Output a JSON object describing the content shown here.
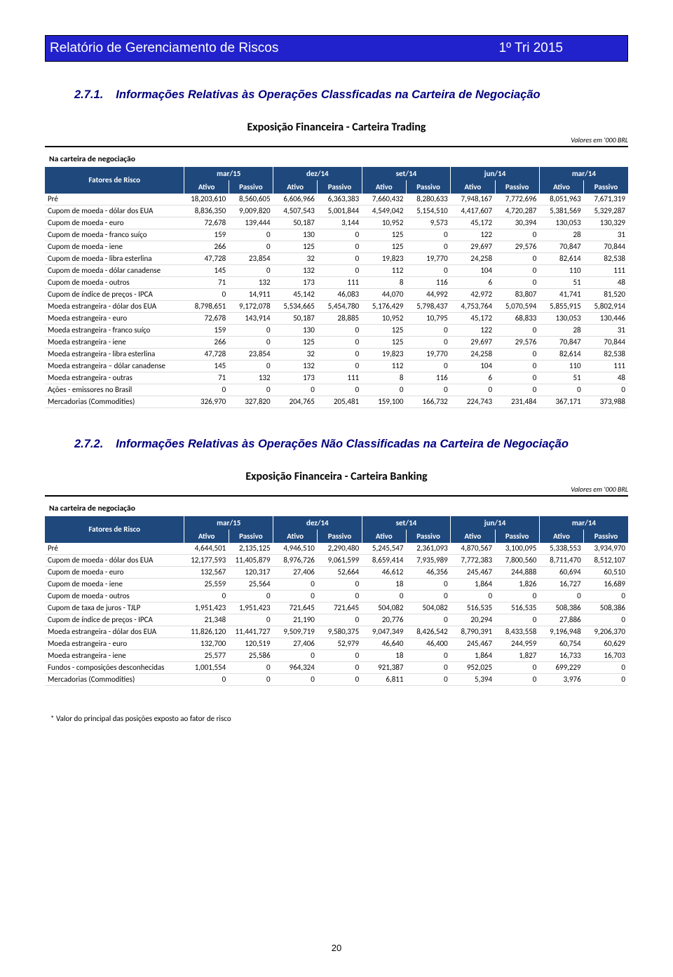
{
  "header": {
    "title": "Relatório de Gerenciamento de Riscos",
    "period": "1º Tri 2015",
    "bg_color": "#2222cc"
  },
  "section1": {
    "num": "2.7.1.",
    "text": "Informações Relativas às Operações Classficadas na Carteira de Negociação"
  },
  "section2": {
    "num": "2.7.2.",
    "text": "Informações Relativas às Operações Não Classificadas na Carteira de Negociação"
  },
  "table1": {
    "title": "Exposição Financeira - Carteira Trading",
    "note": "Valores em '000 BRL",
    "pre": "Na carteira de negociação",
    "fatores_label": "Fatores de Risco",
    "periods": [
      "mar/15",
      "dez/14",
      "set/14",
      "jun/14",
      "mar/14"
    ],
    "subheads": [
      "Ativo",
      "Passivo"
    ],
    "rows": [
      {
        "label": "Pré",
        "v": [
          "18,203,610",
          "8,560,605",
          "6,606,966",
          "6,363,383",
          "7,660,432",
          "8,280,633",
          "7,948,167",
          "7,772,696",
          "8,051,963",
          "7,671,319"
        ]
      },
      {
        "label": "Cupom de moeda - dólar dos EUA",
        "v": [
          "8,836,350",
          "9,009,820",
          "4,507,543",
          "5,001,844",
          "4,549,042",
          "5,154,510",
          "4,417,607",
          "4,720,287",
          "5,381,569",
          "5,329,287"
        ]
      },
      {
        "label": "Cupom de moeda - euro",
        "v": [
          "72,678",
          "139,444",
          "50,187",
          "3,144",
          "10,952",
          "9,573",
          "45,172",
          "30,394",
          "130,053",
          "130,329"
        ]
      },
      {
        "label": "Cupom de moeda - franco suíço",
        "v": [
          "159",
          "0",
          "130",
          "0",
          "125",
          "0",
          "122",
          "0",
          "28",
          "31"
        ]
      },
      {
        "label": "Cupom de moeda - iene",
        "v": [
          "266",
          "0",
          "125",
          "0",
          "125",
          "0",
          "29,697",
          "29,576",
          "70,847",
          "70,844"
        ]
      },
      {
        "label": "Cupom de moeda - libra esterlina",
        "v": [
          "47,728",
          "23,854",
          "32",
          "0",
          "19,823",
          "19,770",
          "24,258",
          "0",
          "82,614",
          "82,538"
        ]
      },
      {
        "label": "Cupom de moeda - dólar canadense",
        "v": [
          "145",
          "0",
          "132",
          "0",
          "112",
          "0",
          "104",
          "0",
          "110",
          "111"
        ]
      },
      {
        "label": "Cupom de moeda - outros",
        "v": [
          "71",
          "132",
          "173",
          "111",
          "8",
          "116",
          "6",
          "0",
          "51",
          "48"
        ]
      },
      {
        "label": "Cupom de índice de preços - IPCA",
        "v": [
          "0",
          "14,911",
          "45,142",
          "46,083",
          "44,070",
          "44,992",
          "42,972",
          "83,807",
          "41,741",
          "81,520"
        ]
      },
      {
        "label": "Moeda estrangeira - dólar dos EUA",
        "v": [
          "8,798,651",
          "9,172,078",
          "5,534,665",
          "5,454,780",
          "5,176,429",
          "5,798,437",
          "4,753,764",
          "5,070,594",
          "5,855,915",
          "5,802,914"
        ]
      },
      {
        "label": "Moeda estrangeira - euro",
        "v": [
          "72,678",
          "143,914",
          "50,187",
          "28,885",
          "10,952",
          "10,795",
          "45,172",
          "68,833",
          "130,053",
          "130,446"
        ]
      },
      {
        "label": "Moeda estrangeira - franco suíço",
        "v": [
          "159",
          "0",
          "130",
          "0",
          "125",
          "0",
          "122",
          "0",
          "28",
          "31"
        ]
      },
      {
        "label": "Moeda estrangeira - iene",
        "v": [
          "266",
          "0",
          "125",
          "0",
          "125",
          "0",
          "29,697",
          "29,576",
          "70,847",
          "70,844"
        ]
      },
      {
        "label": "Moeda estrangeira - libra esterlina",
        "v": [
          "47,728",
          "23,854",
          "32",
          "0",
          "19,823",
          "19,770",
          "24,258",
          "0",
          "82,614",
          "82,538"
        ]
      },
      {
        "label": "Moeda estrangeira – dólar canadense",
        "v": [
          "145",
          "0",
          "132",
          "0",
          "112",
          "0",
          "104",
          "0",
          "110",
          "111"
        ]
      },
      {
        "label": "Moeda estrangeira - outras",
        "v": [
          "71",
          "132",
          "173",
          "111",
          "8",
          "116",
          "6",
          "0",
          "51",
          "48"
        ]
      },
      {
        "label": "Ações - emissores no Brasil",
        "v": [
          "0",
          "0",
          "0",
          "0",
          "0",
          "0",
          "0",
          "0",
          "0",
          "0"
        ]
      },
      {
        "label": "Mercadorias (Commodities)",
        "v": [
          "326,970",
          "327,820",
          "204,765",
          "205,481",
          "159,100",
          "166,732",
          "224,743",
          "231,484",
          "367,171",
          "373,988"
        ]
      }
    ]
  },
  "table2": {
    "title": "Exposição Financeira - Carteira Banking",
    "note": "Valores em '000 BRL",
    "pre": "Na carteira de negociação",
    "fatores_label": "Fatores de Risco",
    "periods": [
      "mar/15",
      "dez/14",
      "set/14",
      "jun/14",
      "mar/14"
    ],
    "subheads": [
      "Ativo",
      "Passivo"
    ],
    "rows": [
      {
        "label": "Pré",
        "v": [
          "4,644,501",
          "2,135,125",
          "4,946,510",
          "2,290,480",
          "5,245,547",
          "2,361,093",
          "4,870,567",
          "3,100,095",
          "5,338,553",
          "3,934,970"
        ]
      },
      {
        "label": "Cupom de moeda - dólar dos EUA",
        "v": [
          "12,177,593",
          "11,405,879",
          "8,976,726",
          "9,061,599",
          "8,659,414",
          "7,935,989",
          "7,772,383",
          "7,800,560",
          "8,711,470",
          "8,512,107"
        ]
      },
      {
        "label": "Cupom de moeda - euro",
        "v": [
          "132,567",
          "120,317",
          "27,406",
          "52,664",
          "46,612",
          "46,356",
          "245,467",
          "244,888",
          "60,694",
          "60,510"
        ]
      },
      {
        "label": "Cupom de moeda - iene",
        "v": [
          "25,559",
          "25,564",
          "0",
          "0",
          "18",
          "0",
          "1,864",
          "1,826",
          "16,727",
          "16,689"
        ]
      },
      {
        "label": "Cupom de moeda - outros",
        "v": [
          "0",
          "0",
          "0",
          "0",
          "0",
          "0",
          "0",
          "0",
          "0",
          "0"
        ]
      },
      {
        "label": "Cupom de taxa de juros - TJLP",
        "v": [
          "1,951,423",
          "1,951,423",
          "721,645",
          "721,645",
          "504,082",
          "504,082",
          "516,535",
          "516,535",
          "508,386",
          "508,386"
        ]
      },
      {
        "label": "Cupom de índice de preços - IPCA",
        "v": [
          "21,348",
          "0",
          "21,190",
          "0",
          "20,776",
          "0",
          "20,294",
          "0",
          "27,886",
          "0"
        ]
      },
      {
        "label": "Moeda estrangeira - dólar dos EUA",
        "v": [
          "11,826,120",
          "11,441,727",
          "9,509,719",
          "9,580,375",
          "9,047,349",
          "8,426,542",
          "8,790,391",
          "8,433,558",
          "9,196,948",
          "9,206,370"
        ]
      },
      {
        "label": "Moeda estrangeira - euro",
        "v": [
          "132,700",
          "120,519",
          "27,406",
          "52,979",
          "46,640",
          "46,400",
          "245,467",
          "244,959",
          "60,754",
          "60,629"
        ]
      },
      {
        "label": "Moeda estrangeira - iene",
        "v": [
          "25,577",
          "25,586",
          "0",
          "0",
          "18",
          "0",
          "1,864",
          "1,827",
          "16,733",
          "16,703"
        ]
      },
      {
        "label": "Fundos - composições desconhecidas",
        "v": [
          "1,001,554",
          "0",
          "964,324",
          "0",
          "921,387",
          "0",
          "952,025",
          "0",
          "699,229",
          "0"
        ]
      },
      {
        "label": "Mercadorias (Commodities)",
        "v": [
          "0",
          "0",
          "0",
          "0",
          "6,811",
          "0",
          "5,394",
          "0",
          "3,976",
          "0"
        ]
      }
    ]
  },
  "footnote": "* Valor do principal das posições exposto ao fator de risco",
  "page_number": "20",
  "colors": {
    "th_bg": "#1f497d",
    "heading_color": "#000080"
  }
}
